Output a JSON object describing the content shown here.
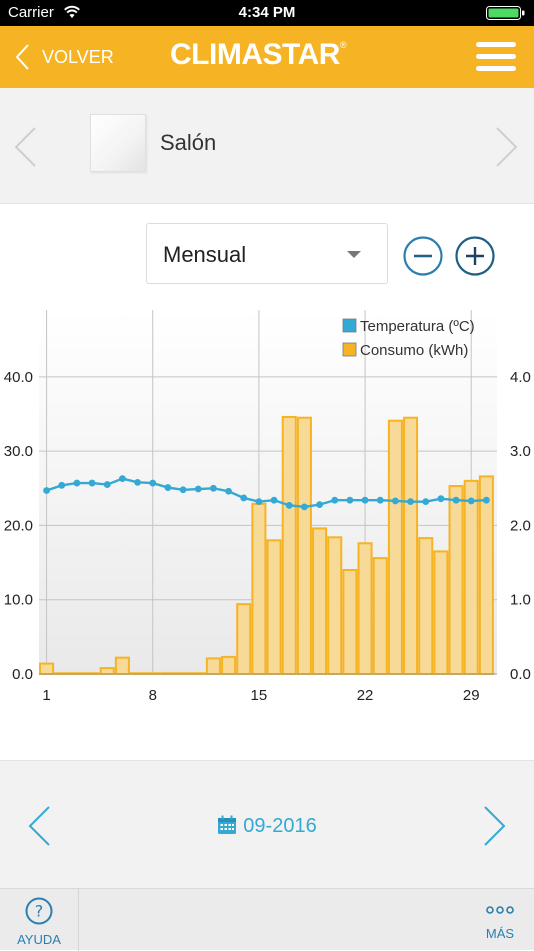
{
  "status_bar": {
    "carrier": "Carrier",
    "time": "4:34 PM"
  },
  "header": {
    "back_label": "VOLVER",
    "logo_text": "CLIMASTAR",
    "logo_mark": "®"
  },
  "room": {
    "name": "Salón"
  },
  "period": {
    "selected": "Mensual"
  },
  "chart_data": {
    "type": "bar+line",
    "x_ticks": [
      "1",
      "8",
      "15",
      "22",
      "29"
    ],
    "y_left_ticks": [
      "0.0",
      "10.0",
      "20.0",
      "30.0",
      "40.0"
    ],
    "y_right_ticks": [
      "0.0",
      "1.0",
      "2.0",
      "3.0",
      "4.0"
    ],
    "ylim_left": [
      0,
      49
    ],
    "ylim_right": [
      0,
      4.9
    ],
    "x_range": [
      0.5,
      30.7
    ],
    "grid": true,
    "legend_position": "top-right",
    "series": [
      {
        "name": "Consumo (kWh)",
        "type": "bar",
        "axis": "left",
        "color": "#f6b324",
        "days": [
          1,
          2,
          3,
          4,
          5,
          6,
          7,
          8,
          9,
          10,
          11,
          12,
          13,
          14,
          15,
          16,
          17,
          18,
          19,
          20,
          21,
          22,
          23,
          24,
          25,
          26,
          27,
          28,
          29,
          30
        ],
        "values": [
          1.4,
          0.1,
          0.1,
          0.1,
          0.8,
          2.2,
          0.1,
          0.1,
          0.1,
          0.1,
          0.1,
          2.1,
          2.3,
          9.4,
          22.9,
          18.0,
          34.6,
          34.5,
          19.6,
          18.4,
          14.0,
          17.6,
          15.6,
          34.1,
          34.5,
          18.3,
          16.5,
          25.3,
          26.0,
          26.6
        ]
      },
      {
        "name": "Temperatura (ºC)",
        "type": "line",
        "axis": "right",
        "color": "#33a9d3",
        "days": [
          1,
          2,
          3,
          4,
          5,
          6,
          7,
          8,
          9,
          10,
          11,
          12,
          13,
          14,
          15,
          16,
          17,
          18,
          19,
          20,
          21,
          22,
          23,
          24,
          25,
          26,
          27,
          28,
          29,
          30
        ],
        "values": [
          2.47,
          2.54,
          2.57,
          2.57,
          2.55,
          2.63,
          2.58,
          2.57,
          2.51,
          2.48,
          2.49,
          2.5,
          2.46,
          2.37,
          2.32,
          2.34,
          2.27,
          2.25,
          2.28,
          2.34,
          2.34,
          2.34,
          2.34,
          2.33,
          2.32,
          2.32,
          2.36,
          2.34,
          2.33,
          2.34
        ]
      }
    ]
  },
  "date_nav": {
    "label": "09-2016"
  },
  "tabs": {
    "help_label": "AYUDA",
    "more_label": "MÁS"
  },
  "colors": {
    "accent": "#f6b324",
    "link": "#33a9d3",
    "tab": "#2a7fb0"
  }
}
